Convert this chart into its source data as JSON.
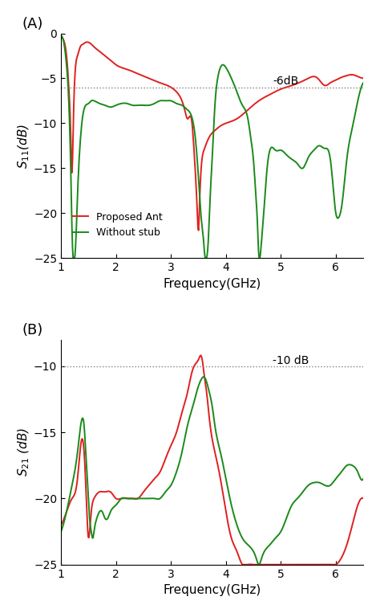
{
  "panel_A": {
    "title": "(A)",
    "ylabel": "S$_{11}$(dB)",
    "xlabel": "Frequency(GHz)",
    "xlim": [
      1,
      6.5
    ],
    "ylim": [
      -25,
      0
    ],
    "yticks": [
      0,
      -5,
      -10,
      -15,
      -20,
      -25
    ],
    "xticks": [
      1,
      2,
      3,
      4,
      5,
      6
    ],
    "hline": -6,
    "hline_label": "-6dB",
    "red_curve": [
      [
        1.0,
        -0.3
      ],
      [
        1.05,
        -0.8
      ],
      [
        1.1,
        -2.5
      ],
      [
        1.15,
        -7.0
      ],
      [
        1.18,
        -12.0
      ],
      [
        1.2,
        -15.5
      ],
      [
        1.22,
        -11.0
      ],
      [
        1.25,
        -5.0
      ],
      [
        1.3,
        -2.5
      ],
      [
        1.35,
        -1.5
      ],
      [
        1.4,
        -1.2
      ],
      [
        1.45,
        -1.0
      ],
      [
        1.5,
        -1.0
      ],
      [
        1.55,
        -1.2
      ],
      [
        1.6,
        -1.5
      ],
      [
        1.7,
        -2.0
      ],
      [
        1.8,
        -2.5
      ],
      [
        1.9,
        -3.0
      ],
      [
        2.0,
        -3.5
      ],
      [
        2.2,
        -4.0
      ],
      [
        2.4,
        -4.5
      ],
      [
        2.6,
        -5.0
      ],
      [
        2.8,
        -5.5
      ],
      [
        3.0,
        -6.0
      ],
      [
        3.1,
        -6.5
      ],
      [
        3.2,
        -7.5
      ],
      [
        3.25,
        -8.5
      ],
      [
        3.3,
        -9.5
      ],
      [
        3.35,
        -9.2
      ],
      [
        3.38,
        -9.8
      ],
      [
        3.42,
        -13.0
      ],
      [
        3.48,
        -20.0
      ],
      [
        3.5,
        -22.0
      ],
      [
        3.52,
        -19.0
      ],
      [
        3.55,
        -15.0
      ],
      [
        3.6,
        -13.0
      ],
      [
        3.7,
        -11.5
      ],
      [
        3.8,
        -10.8
      ],
      [
        3.9,
        -10.3
      ],
      [
        4.0,
        -10.0
      ],
      [
        4.2,
        -9.5
      ],
      [
        4.4,
        -8.5
      ],
      [
        4.6,
        -7.5
      ],
      [
        4.8,
        -6.8
      ],
      [
        5.0,
        -6.2
      ],
      [
        5.2,
        -5.8
      ],
      [
        5.4,
        -5.3
      ],
      [
        5.5,
        -5.0
      ],
      [
        5.6,
        -4.8
      ],
      [
        5.65,
        -4.9
      ],
      [
        5.7,
        -5.2
      ],
      [
        5.8,
        -5.8
      ],
      [
        5.9,
        -5.5
      ],
      [
        6.0,
        -5.2
      ],
      [
        6.1,
        -4.9
      ],
      [
        6.2,
        -4.7
      ],
      [
        6.3,
        -4.6
      ],
      [
        6.4,
        -4.8
      ],
      [
        6.5,
        -5.0
      ]
    ],
    "green_curve": [
      [
        1.0,
        -0.3
      ],
      [
        1.05,
        -1.0
      ],
      [
        1.1,
        -3.5
      ],
      [
        1.15,
        -9.0
      ],
      [
        1.18,
        -16.0
      ],
      [
        1.2,
        -22.0
      ],
      [
        1.22,
        -25.0
      ],
      [
        1.25,
        -25.0
      ],
      [
        1.27,
        -23.0
      ],
      [
        1.3,
        -18.0
      ],
      [
        1.35,
        -12.0
      ],
      [
        1.4,
        -9.0
      ],
      [
        1.45,
        -8.0
      ],
      [
        1.5,
        -7.8
      ],
      [
        1.55,
        -7.5
      ],
      [
        1.6,
        -7.5
      ],
      [
        1.7,
        -7.8
      ],
      [
        1.8,
        -8.0
      ],
      [
        1.9,
        -8.2
      ],
      [
        2.0,
        -8.0
      ],
      [
        2.1,
        -7.8
      ],
      [
        2.2,
        -7.8
      ],
      [
        2.3,
        -8.0
      ],
      [
        2.4,
        -8.0
      ],
      [
        2.5,
        -8.0
      ],
      [
        2.6,
        -8.0
      ],
      [
        2.7,
        -7.8
      ],
      [
        2.8,
        -7.5
      ],
      [
        2.9,
        -7.5
      ],
      [
        3.0,
        -7.5
      ],
      [
        3.1,
        -7.8
      ],
      [
        3.2,
        -8.0
      ],
      [
        3.3,
        -8.5
      ],
      [
        3.4,
        -9.8
      ],
      [
        3.45,
        -12.0
      ],
      [
        3.5,
        -16.0
      ],
      [
        3.55,
        -20.5
      ],
      [
        3.6,
        -23.5
      ],
      [
        3.62,
        -25.0
      ],
      [
        3.65,
        -25.0
      ],
      [
        3.68,
        -23.0
      ],
      [
        3.7,
        -20.0
      ],
      [
        3.75,
        -14.0
      ],
      [
        3.8,
        -8.0
      ],
      [
        3.85,
        -5.0
      ],
      [
        3.9,
        -3.8
      ],
      [
        3.95,
        -3.5
      ],
      [
        4.0,
        -3.8
      ],
      [
        4.1,
        -5.0
      ],
      [
        4.2,
        -6.5
      ],
      [
        4.3,
        -8.0
      ],
      [
        4.4,
        -9.5
      ],
      [
        4.45,
        -11.5
      ],
      [
        4.5,
        -14.0
      ],
      [
        4.55,
        -18.5
      ],
      [
        4.58,
        -22.0
      ],
      [
        4.6,
        -25.0
      ],
      [
        4.62,
        -25.0
      ],
      [
        4.65,
        -23.0
      ],
      [
        4.7,
        -19.0
      ],
      [
        4.75,
        -15.0
      ],
      [
        4.8,
        -13.0
      ],
      [
        4.9,
        -13.0
      ],
      [
        5.0,
        -13.0
      ],
      [
        5.1,
        -13.5
      ],
      [
        5.2,
        -14.0
      ],
      [
        5.3,
        -14.5
      ],
      [
        5.4,
        -15.0
      ],
      [
        5.5,
        -13.8
      ],
      [
        5.6,
        -13.0
      ],
      [
        5.7,
        -12.5
      ],
      [
        5.8,
        -12.8
      ],
      [
        5.9,
        -14.0
      ],
      [
        5.95,
        -17.0
      ],
      [
        6.0,
        -20.0
      ],
      [
        6.05,
        -20.5
      ],
      [
        6.1,
        -19.5
      ],
      [
        6.15,
        -17.0
      ],
      [
        6.2,
        -14.0
      ],
      [
        6.3,
        -10.5
      ],
      [
        6.4,
        -7.5
      ],
      [
        6.5,
        -5.5
      ]
    ]
  },
  "panel_B": {
    "title": "(B)",
    "ylabel": "S$_{21}$ (dB)",
    "xlabel": "Frequency(GHz)",
    "xlim": [
      1,
      6.5
    ],
    "ylim": [
      -25,
      -8
    ],
    "yticks": [
      -10,
      -15,
      -20,
      -25
    ],
    "xticks": [
      1,
      2,
      3,
      4,
      5,
      6
    ],
    "hline": -10,
    "hline_label": "-10 dB",
    "red_curve": [
      [
        1.0,
        -22.0
      ],
      [
        1.1,
        -21.0
      ],
      [
        1.2,
        -20.0
      ],
      [
        1.3,
        -18.5
      ],
      [
        1.38,
        -15.5
      ],
      [
        1.42,
        -16.5
      ],
      [
        1.45,
        -19.0
      ],
      [
        1.5,
        -23.0
      ],
      [
        1.52,
        -22.5
      ],
      [
        1.55,
        -21.0
      ],
      [
        1.6,
        -20.0
      ],
      [
        1.7,
        -19.5
      ],
      [
        1.8,
        -19.5
      ],
      [
        1.9,
        -19.5
      ],
      [
        2.0,
        -20.0
      ],
      [
        2.1,
        -20.0
      ],
      [
        2.2,
        -20.0
      ],
      [
        2.3,
        -20.0
      ],
      [
        2.4,
        -20.0
      ],
      [
        2.5,
        -19.5
      ],
      [
        2.6,
        -19.0
      ],
      [
        2.7,
        -18.5
      ],
      [
        2.8,
        -18.0
      ],
      [
        2.9,
        -17.0
      ],
      [
        3.0,
        -16.0
      ],
      [
        3.1,
        -15.0
      ],
      [
        3.2,
        -13.5
      ],
      [
        3.3,
        -12.0
      ],
      [
        3.35,
        -11.0
      ],
      [
        3.4,
        -10.2
      ],
      [
        3.45,
        -9.8
      ],
      [
        3.5,
        -9.5
      ],
      [
        3.52,
        -9.3
      ],
      [
        3.55,
        -9.2
      ],
      [
        3.58,
        -9.8
      ],
      [
        3.6,
        -10.5
      ],
      [
        3.65,
        -12.0
      ],
      [
        3.7,
        -14.0
      ],
      [
        3.8,
        -16.5
      ],
      [
        3.9,
        -18.5
      ],
      [
        4.0,
        -21.0
      ],
      [
        4.1,
        -23.0
      ],
      [
        4.2,
        -24.0
      ],
      [
        4.3,
        -25.0
      ],
      [
        4.4,
        -25.0
      ],
      [
        4.5,
        -25.0
      ],
      [
        4.6,
        -25.0
      ],
      [
        4.7,
        -25.0
      ],
      [
        4.8,
        -25.0
      ],
      [
        4.9,
        -25.0
      ],
      [
        5.0,
        -25.0
      ],
      [
        5.1,
        -25.0
      ],
      [
        5.15,
        -25.0
      ],
      [
        5.2,
        -25.0
      ],
      [
        5.3,
        -25.0
      ],
      [
        5.4,
        -25.0
      ],
      [
        5.5,
        -25.0
      ],
      [
        5.6,
        -25.0
      ],
      [
        5.7,
        -25.0
      ],
      [
        5.8,
        -25.0
      ],
      [
        5.9,
        -25.0
      ],
      [
        6.0,
        -25.0
      ],
      [
        6.1,
        -24.5
      ],
      [
        6.2,
        -23.5
      ],
      [
        6.3,
        -22.0
      ],
      [
        6.4,
        -20.5
      ],
      [
        6.5,
        -20.0
      ]
    ],
    "green_curve": [
      [
        1.0,
        -22.5
      ],
      [
        1.1,
        -21.0
      ],
      [
        1.2,
        -19.0
      ],
      [
        1.3,
        -16.5
      ],
      [
        1.38,
        -14.0
      ],
      [
        1.42,
        -14.5
      ],
      [
        1.45,
        -16.5
      ],
      [
        1.5,
        -20.0
      ],
      [
        1.52,
        -21.5
      ],
      [
        1.55,
        -22.5
      ],
      [
        1.58,
        -23.0
      ],
      [
        1.6,
        -22.5
      ],
      [
        1.65,
        -21.5
      ],
      [
        1.7,
        -21.0
      ],
      [
        1.75,
        -21.0
      ],
      [
        1.8,
        -21.5
      ],
      [
        1.85,
        -21.5
      ],
      [
        1.9,
        -21.0
      ],
      [
        2.0,
        -20.5
      ],
      [
        2.1,
        -20.0
      ],
      [
        2.2,
        -20.0
      ],
      [
        2.3,
        -20.0
      ],
      [
        2.4,
        -20.0
      ],
      [
        2.5,
        -20.0
      ],
      [
        2.6,
        -20.0
      ],
      [
        2.7,
        -20.0
      ],
      [
        2.8,
        -20.0
      ],
      [
        2.9,
        -19.5
      ],
      [
        3.0,
        -19.0
      ],
      [
        3.1,
        -18.0
      ],
      [
        3.2,
        -16.5
      ],
      [
        3.3,
        -14.5
      ],
      [
        3.4,
        -13.0
      ],
      [
        3.5,
        -11.5
      ],
      [
        3.55,
        -11.0
      ],
      [
        3.6,
        -10.8
      ],
      [
        3.65,
        -11.2
      ],
      [
        3.7,
        -12.0
      ],
      [
        3.75,
        -13.0
      ],
      [
        3.8,
        -14.5
      ],
      [
        3.9,
        -16.5
      ],
      [
        4.0,
        -18.5
      ],
      [
        4.1,
        -20.5
      ],
      [
        4.2,
        -22.0
      ],
      [
        4.3,
        -23.0
      ],
      [
        4.4,
        -23.5
      ],
      [
        4.5,
        -24.0
      ],
      [
        4.55,
        -24.5
      ],
      [
        4.6,
        -25.0
      ],
      [
        4.65,
        -24.5
      ],
      [
        4.7,
        -24.0
      ],
      [
        4.8,
        -23.5
      ],
      [
        4.9,
        -23.0
      ],
      [
        5.0,
        -22.5
      ],
      [
        5.1,
        -21.5
      ],
      [
        5.2,
        -20.5
      ],
      [
        5.3,
        -20.0
      ],
      [
        5.4,
        -19.5
      ],
      [
        5.5,
        -19.0
      ],
      [
        5.6,
        -18.8
      ],
      [
        5.7,
        -18.8
      ],
      [
        5.8,
        -19.0
      ],
      [
        5.9,
        -19.0
      ],
      [
        6.0,
        -18.5
      ],
      [
        6.1,
        -18.0
      ],
      [
        6.2,
        -17.5
      ],
      [
        6.3,
        -17.5
      ],
      [
        6.4,
        -18.0
      ],
      [
        6.45,
        -18.5
      ],
      [
        6.5,
        -18.5
      ]
    ]
  },
  "red_color": "#e02020",
  "green_color": "#1a8a1a",
  "legend_proposed": "Proposed Ant",
  "legend_without": "Without stub"
}
